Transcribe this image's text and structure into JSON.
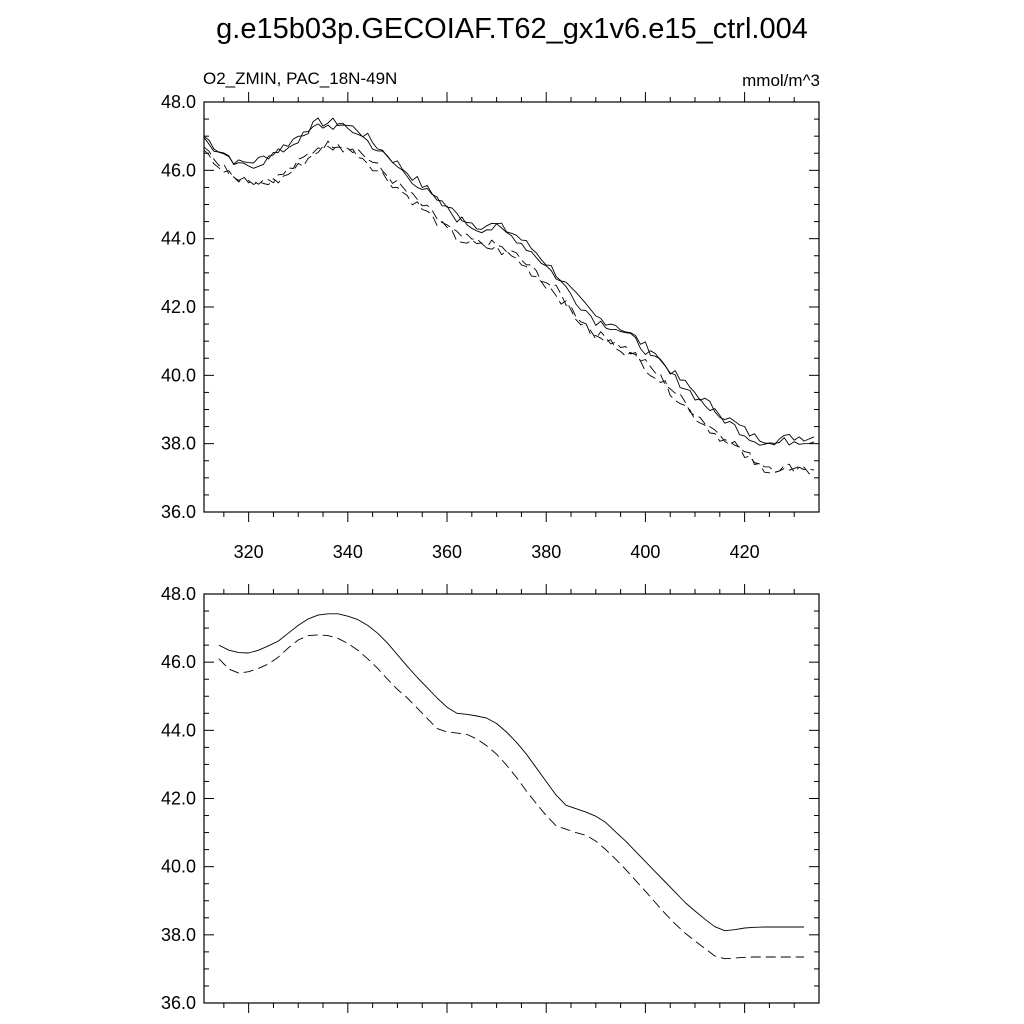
{
  "title": "g.e15b03p.GECOIAF.T62_gx1v6.e15_ctrl.004",
  "chart_data": [
    {
      "type": "line",
      "left_label": "O2_ZMIN, PAC_18N-49N",
      "right_label": "mmol/m^3",
      "xlim": [
        311,
        435
      ],
      "ylim": [
        36.0,
        48.0
      ],
      "x_ticks": [
        320,
        340,
        360,
        380,
        400,
        420
      ],
      "y_ticks": [
        "36.0",
        "38.0",
        "40.0",
        "42.0",
        "44.0",
        "46.0",
        "48.0"
      ],
      "x_tick_labels": [
        "320",
        "340",
        "360",
        "380",
        "400",
        "420"
      ],
      "grid": false,
      "series": [
        {
          "dash": "solid",
          "noisy": true,
          "x": [
            311,
            314,
            318,
            322,
            326,
            330,
            334,
            338,
            342,
            346,
            350,
            354,
            358,
            362,
            366,
            370,
            374,
            378,
            382,
            386,
            390,
            394,
            398,
            402,
            406,
            410,
            414,
            418,
            422,
            426,
            430,
            434
          ],
          "values": [
            47.0,
            46.6,
            46.2,
            46.3,
            46.6,
            47.0,
            47.4,
            47.4,
            47.2,
            46.7,
            46.2,
            45.7,
            45.2,
            44.7,
            44.4,
            44.4,
            44.1,
            43.6,
            43.0,
            42.3,
            41.7,
            41.5,
            41.1,
            40.6,
            40.0,
            39.5,
            39.0,
            38.6,
            38.2,
            38.1,
            38.2,
            38.2
          ]
        },
        {
          "dash": "dashed",
          "noisy": true,
          "x": [
            311,
            314,
            318,
            322,
            326,
            330,
            334,
            338,
            342,
            346,
            350,
            354,
            358,
            362,
            366,
            370,
            374,
            378,
            382,
            386,
            390,
            394,
            398,
            402,
            406,
            410,
            414,
            418,
            422,
            426,
            430,
            434
          ],
          "values": [
            46.8,
            46.2,
            45.8,
            45.7,
            45.8,
            46.2,
            46.7,
            46.8,
            46.6,
            46.1,
            45.6,
            45.1,
            44.6,
            44.1,
            43.9,
            43.8,
            43.5,
            43.0,
            42.5,
            41.8,
            41.2,
            41.0,
            40.6,
            40.1,
            39.5,
            38.9,
            38.4,
            38.0,
            37.5,
            37.3,
            37.3,
            37.3
          ]
        },
        {
          "dash": "solid",
          "noisy": true,
          "x": [
            311,
            314,
            318,
            322,
            326,
            330,
            334,
            338,
            342,
            346,
            350,
            354,
            358,
            362,
            366,
            370,
            374,
            378,
            382,
            386,
            390,
            394,
            398,
            402,
            406,
            410,
            414,
            418,
            422,
            426,
            430,
            434
          ],
          "values": [
            46.9,
            46.5,
            46.1,
            46.2,
            46.5,
            46.9,
            47.3,
            47.3,
            47.1,
            46.6,
            46.1,
            45.6,
            45.1,
            44.6,
            44.3,
            44.3,
            44.0,
            43.5,
            42.9,
            42.2,
            41.6,
            41.4,
            41.0,
            40.5,
            39.9,
            39.4,
            38.9,
            38.5,
            38.1,
            38.0,
            38.1,
            38.1
          ]
        },
        {
          "dash": "dashed",
          "noisy": true,
          "x": [
            311,
            314,
            318,
            322,
            326,
            330,
            334,
            338,
            342,
            346,
            350,
            354,
            358,
            362,
            366,
            370,
            374,
            378,
            382,
            386,
            390,
            394,
            398,
            402,
            406,
            410,
            414,
            418,
            422,
            426,
            430,
            434
          ],
          "values": [
            46.7,
            46.1,
            45.7,
            45.6,
            45.7,
            46.1,
            46.6,
            46.7,
            46.5,
            46.0,
            45.5,
            45.0,
            44.5,
            44.0,
            43.8,
            43.7,
            43.4,
            42.9,
            42.4,
            41.7,
            41.1,
            40.9,
            40.5,
            40.0,
            39.4,
            38.8,
            38.3,
            37.9,
            37.4,
            37.2,
            37.2,
            37.2
          ]
        }
      ]
    },
    {
      "type": "line",
      "xlim": [
        311,
        435
      ],
      "ylim": [
        36.0,
        48.0
      ],
      "x_ticks": [
        320,
        340,
        360,
        380,
        400,
        420
      ],
      "y_ticks": [
        "36.0",
        "38.0",
        "40.0",
        "42.0",
        "44.0",
        "46.0",
        "48.0"
      ],
      "grid": false,
      "series": [
        {
          "dash": "solid",
          "noisy": false,
          "x": [
            314,
            316,
            318,
            320,
            322,
            324,
            326,
            328,
            330,
            332,
            334,
            336,
            338,
            340,
            342,
            344,
            346,
            348,
            350,
            352,
            354,
            356,
            358,
            360,
            362,
            364,
            366,
            368,
            370,
            372,
            374,
            376,
            378,
            380,
            382,
            384,
            386,
            388,
            390,
            392,
            394,
            396,
            398,
            400,
            402,
            404,
            406,
            408,
            410,
            412,
            414,
            416,
            418,
            420,
            422,
            424,
            426,
            428,
            430,
            432
          ],
          "values": [
            46.5,
            46.35,
            46.28,
            46.27,
            46.35,
            46.48,
            46.62,
            46.85,
            47.08,
            47.27,
            47.38,
            47.42,
            47.42,
            47.35,
            47.25,
            47.08,
            46.85,
            46.56,
            46.22,
            45.88,
            45.55,
            45.25,
            44.95,
            44.68,
            44.5,
            44.47,
            44.42,
            44.36,
            44.2,
            43.95,
            43.65,
            43.3,
            42.9,
            42.5,
            42.1,
            41.8,
            41.7,
            41.6,
            41.48,
            41.3,
            41.02,
            40.75,
            40.45,
            40.15,
            39.85,
            39.55,
            39.25,
            38.95,
            38.7,
            38.46,
            38.24,
            38.12,
            38.15,
            38.2,
            38.22,
            38.23,
            38.23,
            38.23,
            38.23,
            38.23
          ]
        },
        {
          "dash": "dashed",
          "noisy": false,
          "x": [
            314,
            316,
            318,
            320,
            322,
            324,
            326,
            328,
            330,
            332,
            334,
            336,
            338,
            340,
            342,
            344,
            346,
            348,
            350,
            352,
            354,
            356,
            358,
            360,
            362,
            364,
            366,
            368,
            370,
            372,
            374,
            376,
            378,
            380,
            382,
            384,
            386,
            388,
            390,
            392,
            394,
            396,
            398,
            400,
            402,
            404,
            406,
            408,
            410,
            412,
            414,
            416,
            418,
            420,
            422,
            424,
            426,
            428,
            430,
            432
          ],
          "values": [
            46.1,
            45.8,
            45.68,
            45.72,
            45.82,
            45.95,
            46.15,
            46.42,
            46.65,
            46.78,
            46.8,
            46.78,
            46.7,
            46.55,
            46.35,
            46.1,
            45.82,
            45.5,
            45.2,
            44.95,
            44.65,
            44.35,
            44.05,
            43.95,
            43.92,
            43.88,
            43.75,
            43.55,
            43.3,
            42.98,
            42.62,
            42.22,
            41.85,
            41.5,
            41.2,
            41.1,
            41.0,
            40.92,
            40.75,
            40.5,
            40.22,
            39.92,
            39.6,
            39.28,
            38.95,
            38.62,
            38.32,
            38.05,
            37.82,
            37.6,
            37.38,
            37.3,
            37.32,
            37.34,
            37.35,
            37.35,
            37.35,
            37.35,
            37.35,
            37.35
          ]
        }
      ]
    }
  ]
}
